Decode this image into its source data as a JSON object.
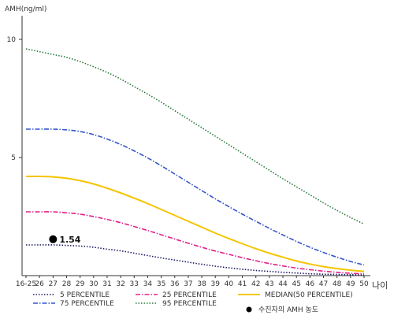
{
  "chart_data": {
    "type": "line",
    "ylabel": "AMH(ng/ml)",
    "xunit": "나이",
    "x": [
      "16-25",
      "26",
      "27",
      "28",
      "29",
      "30",
      "31",
      "32",
      "33",
      "34",
      "35",
      "36",
      "37",
      "38",
      "39",
      "40",
      "41",
      "42",
      "43",
      "44",
      "45",
      "46",
      "47",
      "48",
      "49",
      "50"
    ],
    "ylim": [
      0,
      11
    ],
    "yticks": [
      5,
      10
    ],
    "grid": false,
    "legend_position": "bottom",
    "series": [
      {
        "name": "5 PERCENTILE",
        "color": "#1a1a66",
        "dash": "dotted",
        "values": [
          1.3,
          1.3,
          1.3,
          1.28,
          1.25,
          1.2,
          1.12,
          1.05,
          0.95,
          0.85,
          0.75,
          0.66,
          0.57,
          0.48,
          0.4,
          0.33,
          0.27,
          0.22,
          0.18,
          0.14,
          0.11,
          0.08,
          0.06,
          0.05,
          0.04,
          0.03
        ]
      },
      {
        "name": "25 PERCENTILE",
        "color": "#e0208a",
        "dash": "dashdot",
        "values": [
          2.7,
          2.7,
          2.7,
          2.66,
          2.6,
          2.5,
          2.38,
          2.24,
          2.08,
          1.91,
          1.73,
          1.55,
          1.37,
          1.2,
          1.04,
          0.9,
          0.76,
          0.63,
          0.51,
          0.41,
          0.32,
          0.25,
          0.19,
          0.14,
          0.1,
          0.08
        ]
      },
      {
        "name": "MEDIAN(50 PERCENTILE)",
        "color": "#f5c400",
        "dash": "solid",
        "values": [
          4.2,
          4.2,
          4.18,
          4.12,
          4.02,
          3.88,
          3.7,
          3.5,
          3.28,
          3.05,
          2.8,
          2.55,
          2.3,
          2.05,
          1.8,
          1.57,
          1.35,
          1.14,
          0.95,
          0.78,
          0.62,
          0.49,
          0.38,
          0.3,
          0.23,
          0.18
        ]
      },
      {
        "name": "75 PERCENTILE",
        "color": "#3355cc",
        "dash": "dashdot",
        "values": [
          6.2,
          6.2,
          6.2,
          6.17,
          6.1,
          5.97,
          5.78,
          5.55,
          5.28,
          4.98,
          4.65,
          4.3,
          3.95,
          3.6,
          3.25,
          2.92,
          2.6,
          2.3,
          2.0,
          1.72,
          1.45,
          1.2,
          0.98,
          0.78,
          0.6,
          0.45
        ]
      },
      {
        "name": "95 PERCENTILE",
        "color": "#2a7a3a",
        "dash": "dotted",
        "values": [
          9.6,
          9.48,
          9.36,
          9.24,
          9.06,
          8.84,
          8.6,
          8.32,
          8.0,
          7.68,
          7.34,
          6.98,
          6.62,
          6.26,
          5.9,
          5.54,
          5.18,
          4.82,
          4.46,
          4.1,
          3.76,
          3.42,
          3.08,
          2.76,
          2.46,
          2.18
        ]
      }
    ],
    "marker": {
      "x": "27",
      "value": 1.54,
      "label": "1.54",
      "legend": "수진자의 AMH 농도"
    }
  }
}
